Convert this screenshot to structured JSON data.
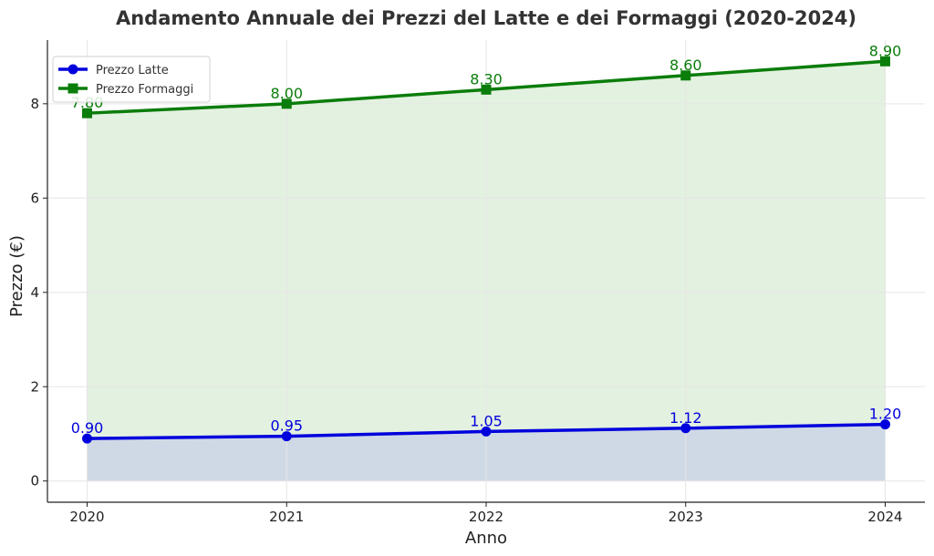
{
  "chart_data": {
    "type": "line",
    "title": "Andamento Annuale dei Prezzi del Latte e dei Formaggi (2020-2024)",
    "xlabel": "Anno",
    "ylabel": "Prezzo (€)",
    "x": [
      "2020",
      "2021",
      "2022",
      "2023",
      "2024"
    ],
    "yticks": [
      0,
      2,
      4,
      6,
      8
    ],
    "ylim": [
      -0.45,
      9.35
    ],
    "grid": true,
    "legend_position": "top-left",
    "series": [
      {
        "name": "Prezzo Latte",
        "values": [
          0.9,
          0.95,
          1.05,
          1.12,
          1.2
        ],
        "labels": [
          "0.90",
          "0.95",
          "1.05",
          "1.12",
          "1.20"
        ],
        "color": "#0000dd",
        "fill": "#cfd9e6",
        "marker": "circle"
      },
      {
        "name": "Prezzo Formaggi",
        "values": [
          7.8,
          8.0,
          8.3,
          8.6,
          8.9
        ],
        "labels": [
          "7.80",
          "8.00",
          "8.30",
          "8.60",
          "8.90"
        ],
        "color": "#0a7d0a",
        "fill": "#e3f1e0",
        "marker": "square"
      }
    ]
  }
}
